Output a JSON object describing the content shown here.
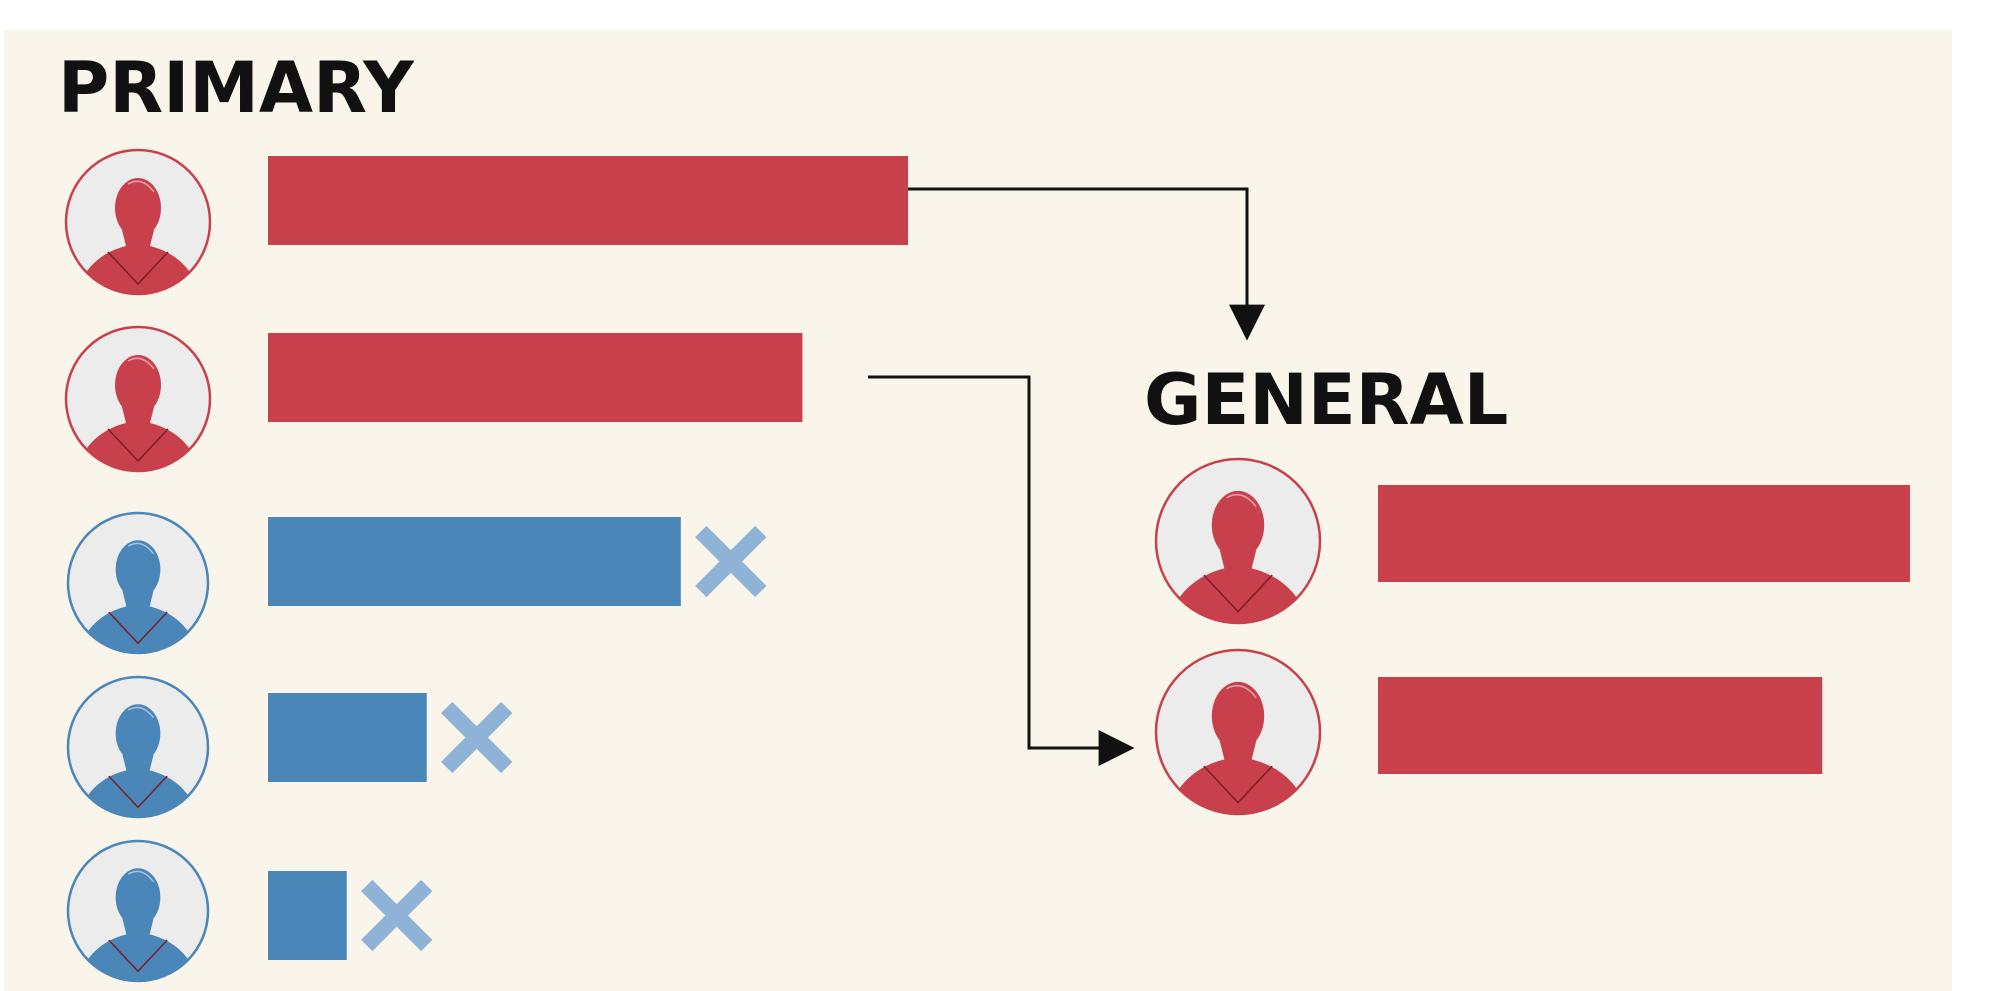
{
  "primary": {
    "title": "PRIMARY",
    "candidates": [
      {
        "party": "red",
        "value": 100,
        "advances": true
      },
      {
        "party": "red",
        "value": 83.5,
        "advances": true
      },
      {
        "party": "blue",
        "value": 64.5,
        "advances": false
      },
      {
        "party": "blue",
        "value": 24.8,
        "advances": false
      },
      {
        "party": "blue",
        "value": 12.3,
        "advances": false
      }
    ]
  },
  "general": {
    "title": "GENERAL",
    "candidates": [
      {
        "party": "red",
        "value": 100
      },
      {
        "party": "red",
        "value": 83.5
      }
    ]
  },
  "colors": {
    "red": "#c8404b",
    "blue": "#4a86b8",
    "eliminated_mark": "#8fb3d6",
    "avatar_bg": "#ececec",
    "panel_bg": "#f9f5ea",
    "connector": "#111111"
  },
  "icons": {
    "avatar": "person-silhouette-icon",
    "eliminated": "x-mark-icon",
    "connector": "arrow-connector-icon"
  }
}
